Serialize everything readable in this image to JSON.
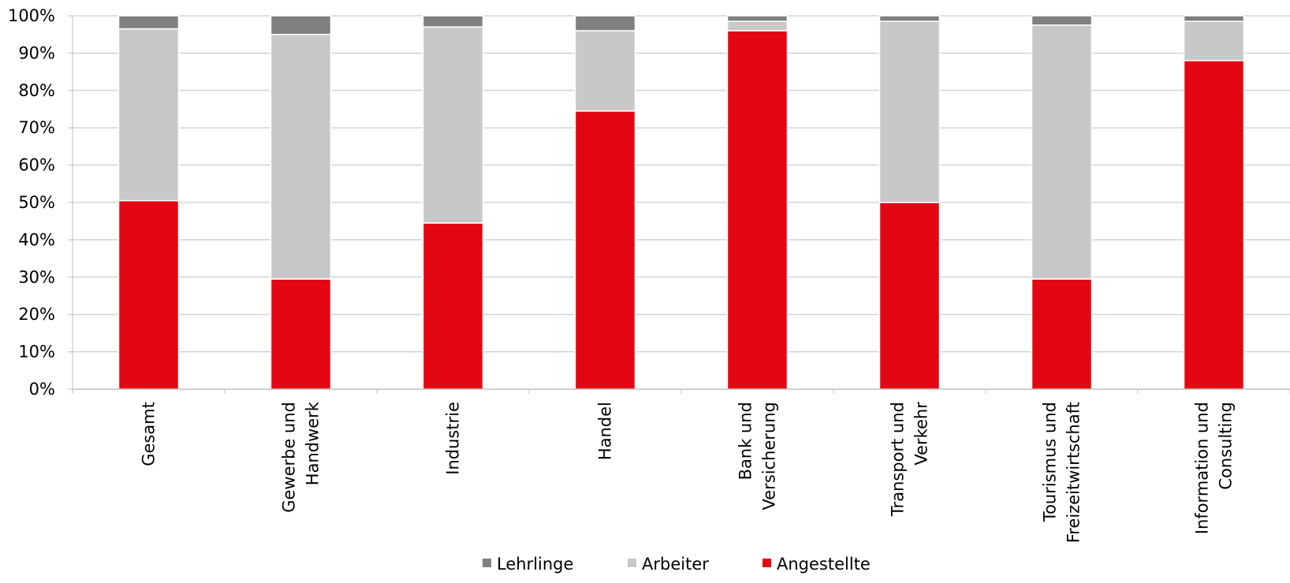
{
  "chart_data": {
    "type": "bar",
    "stacked": true,
    "percent_axis": true,
    "categories": [
      "Gesamt",
      "Gewerbe und Handwerk",
      "Industrie",
      "Handel",
      "Bank und Versicherung",
      "Transport und Verkehr",
      "Tourismus und Freizeitwirtschaft",
      "Information und Consulting"
    ],
    "category_lines": [
      [
        "Gesamt"
      ],
      [
        "Gewerbe und",
        "Handwerk"
      ],
      [
        "Industrie"
      ],
      [
        "Handel"
      ],
      [
        "Bank und",
        "Versicherung"
      ],
      [
        "Transport und",
        "Verkehr"
      ],
      [
        "Tourismus und",
        "Freizeitwirtschaft"
      ],
      [
        "Information und",
        "Consulting"
      ]
    ],
    "series": [
      {
        "name": "Angestellte",
        "color": "#e30613",
        "values": [
          50.5,
          29.5,
          44.5,
          74.5,
          96.0,
          50.0,
          29.5,
          88.0
        ]
      },
      {
        "name": "Arbeiter",
        "color": "#c8c8c8",
        "values": [
          46.0,
          65.5,
          52.5,
          21.5,
          2.5,
          48.5,
          68.0,
          10.5
        ]
      },
      {
        "name": "Lehrlinge",
        "color": "#808080",
        "values": [
          3.5,
          5.0,
          3.0,
          4.0,
          1.5,
          1.5,
          2.5,
          1.5
        ]
      }
    ],
    "legend_order": [
      "Lehrlinge",
      "Arbeiter",
      "Angestellte"
    ],
    "legend_position": "bottom",
    "ylim": [
      0,
      100
    ],
    "yticks": [
      "0%",
      "10%",
      "20%",
      "30%",
      "40%",
      "50%",
      "60%",
      "70%",
      "80%",
      "90%",
      "100%"
    ],
    "grid": true
  }
}
